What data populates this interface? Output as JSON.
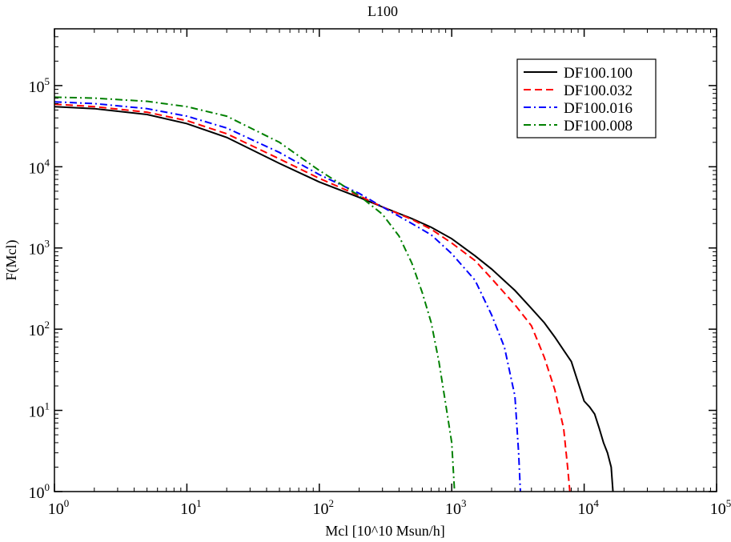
{
  "chart_data": {
    "type": "line",
    "title": "L100",
    "xlabel": "Mcl [10^10 Msun/h]",
    "ylabel": "F(Mcl)",
    "xscale": "log",
    "yscale": "log",
    "xlim": [
      1,
      100000
    ],
    "ylim": [
      1,
      500000
    ],
    "x_ticks": [
      {
        "base": "10",
        "exp": "0",
        "value": 1
      },
      {
        "base": "10",
        "exp": "1",
        "value": 10
      },
      {
        "base": "10",
        "exp": "2",
        "value": 100
      },
      {
        "base": "10",
        "exp": "3",
        "value": 1000
      },
      {
        "base": "10",
        "exp": "4",
        "value": 10000
      },
      {
        "base": "10",
        "exp": "5",
        "value": 100000
      }
    ],
    "y_ticks": [
      {
        "base": "10",
        "exp": "0",
        "value": 1
      },
      {
        "base": "10",
        "exp": "1",
        "value": 10
      },
      {
        "base": "10",
        "exp": "2",
        "value": 100
      },
      {
        "base": "10",
        "exp": "3",
        "value": 1000
      },
      {
        "base": "10",
        "exp": "4",
        "value": 10000
      },
      {
        "base": "10",
        "exp": "5",
        "value": 100000
      }
    ],
    "grid": false,
    "legend_position": "top-right",
    "series": [
      {
        "name": "DF100.100",
        "color": "#000000",
        "dash": "solid",
        "points": [
          [
            1,
            55000
          ],
          [
            2,
            52000
          ],
          [
            5,
            44000
          ],
          [
            10,
            34000
          ],
          [
            20,
            23000
          ],
          [
            50,
            11000
          ],
          [
            100,
            6500
          ],
          [
            200,
            4200
          ],
          [
            300,
            3200
          ],
          [
            500,
            2300
          ],
          [
            700,
            1800
          ],
          [
            1000,
            1300
          ],
          [
            1500,
            800
          ],
          [
            2000,
            550
          ],
          [
            3000,
            300
          ],
          [
            4000,
            180
          ],
          [
            5000,
            120
          ],
          [
            6000,
            80
          ],
          [
            7000,
            55
          ],
          [
            8000,
            40
          ],
          [
            9000,
            22
          ],
          [
            10000,
            13
          ],
          [
            11000,
            11
          ],
          [
            12000,
            9
          ],
          [
            13000,
            6
          ],
          [
            14000,
            4
          ],
          [
            15000,
            3
          ],
          [
            16000,
            2
          ],
          [
            16500,
            1
          ]
        ]
      },
      {
        "name": "DF100.032",
        "color": "#ff0000",
        "dash": "dashed",
        "points": [
          [
            1,
            59000
          ],
          [
            2,
            55000
          ],
          [
            5,
            47000
          ],
          [
            10,
            37000
          ],
          [
            20,
            25500
          ],
          [
            50,
            12500
          ],
          [
            100,
            7200
          ],
          [
            200,
            4400
          ],
          [
            300,
            3200
          ],
          [
            500,
            2250
          ],
          [
            700,
            1700
          ],
          [
            1000,
            1150
          ],
          [
            1500,
            700
          ],
          [
            2000,
            420
          ],
          [
            3000,
            200
          ],
          [
            4000,
            110
          ],
          [
            5000,
            45
          ],
          [
            6000,
            18
          ],
          [
            7000,
            6
          ],
          [
            7500,
            2
          ],
          [
            7800,
            1
          ]
        ]
      },
      {
        "name": "DF100.016",
        "color": "#0000ff",
        "dash": "dashdot",
        "points": [
          [
            1,
            63000
          ],
          [
            2,
            60000
          ],
          [
            5,
            52000
          ],
          [
            10,
            42000
          ],
          [
            20,
            30000
          ],
          [
            50,
            15000
          ],
          [
            100,
            8000
          ],
          [
            200,
            4700
          ],
          [
            300,
            3200
          ],
          [
            500,
            2000
          ],
          [
            700,
            1450
          ],
          [
            1000,
            850
          ],
          [
            1500,
            400
          ],
          [
            2000,
            150
          ],
          [
            2500,
            60
          ],
          [
            3000,
            15
          ],
          [
            3200,
            3
          ],
          [
            3300,
            1
          ]
        ]
      },
      {
        "name": "DF100.008",
        "color": "#008000",
        "dash": "dashdot",
        "points": [
          [
            1,
            72000
          ],
          [
            2,
            70000
          ],
          [
            5,
            64000
          ],
          [
            10,
            55000
          ],
          [
            20,
            42000
          ],
          [
            50,
            20000
          ],
          [
            100,
            9000
          ],
          [
            200,
            4400
          ],
          [
            300,
            2600
          ],
          [
            400,
            1400
          ],
          [
            500,
            650
          ],
          [
            600,
            280
          ],
          [
            700,
            120
          ],
          [
            800,
            40
          ],
          [
            900,
            12
          ],
          [
            1000,
            4
          ],
          [
            1050,
            1
          ]
        ]
      }
    ]
  }
}
